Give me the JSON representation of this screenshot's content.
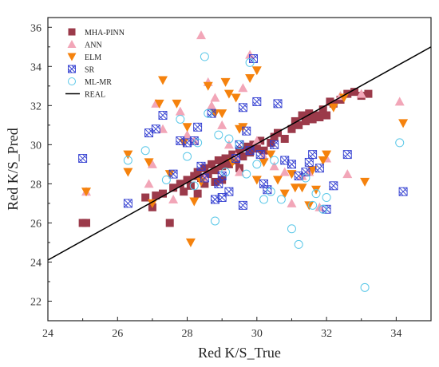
{
  "chart_data": {
    "type": "scatter",
    "xlabel": "Red K/S_True",
    "ylabel": "Red K/S_Pred",
    "xlim": [
      24,
      35
    ],
    "ylim": [
      21,
      36.5
    ],
    "x_ticks": [
      "24",
      "26",
      "28",
      "30",
      "32",
      "34"
    ],
    "y_ticks": [
      "22",
      "24",
      "26",
      "28",
      "30",
      "32",
      "34",
      "36"
    ],
    "grid": false,
    "legend_position": "top-left",
    "series": [
      {
        "name": "MHA-PINN",
        "marker": "square",
        "color": "#9b3a4a",
        "points": [
          [
            25.0,
            26.0
          ],
          [
            25.1,
            26.0
          ],
          [
            26.8,
            27.3
          ],
          [
            27.0,
            26.8
          ],
          [
            27.1,
            27.4
          ],
          [
            27.3,
            27.5
          ],
          [
            27.5,
            26.0
          ],
          [
            27.6,
            27.8
          ],
          [
            27.8,
            28.0
          ],
          [
            27.9,
            27.6
          ],
          [
            28.0,
            28.2
          ],
          [
            28.1,
            27.9
          ],
          [
            28.2,
            28.4
          ],
          [
            28.3,
            28.6
          ],
          [
            28.4,
            28.3
          ],
          [
            28.5,
            28.8
          ],
          [
            28.6,
            28.5
          ],
          [
            28.7,
            29.0
          ],
          [
            28.8,
            28.7
          ],
          [
            28.9,
            29.2
          ],
          [
            29.0,
            28.9
          ],
          [
            29.1,
            29.3
          ],
          [
            29.2,
            29.0
          ],
          [
            29.3,
            29.5
          ],
          [
            29.4,
            29.2
          ],
          [
            29.5,
            29.7
          ],
          [
            29.6,
            29.4
          ],
          [
            29.7,
            29.9
          ],
          [
            29.8,
            29.6
          ],
          [
            29.9,
            30.0
          ],
          [
            30.0,
            29.8
          ],
          [
            30.1,
            30.2
          ],
          [
            30.2,
            29.7
          ],
          [
            30.4,
            30.1
          ],
          [
            30.5,
            30.4
          ],
          [
            30.6,
            30.6
          ],
          [
            30.8,
            30.3
          ],
          [
            31.0,
            30.8
          ],
          [
            31.1,
            31.2
          ],
          [
            31.2,
            31.0
          ],
          [
            31.3,
            31.5
          ],
          [
            31.4,
            31.2
          ],
          [
            31.5,
            31.6
          ],
          [
            31.6,
            31.3
          ],
          [
            31.7,
            31.5
          ],
          [
            31.8,
            31.4
          ],
          [
            31.9,
            31.8
          ],
          [
            32.0,
            31.5
          ],
          [
            32.1,
            32.2
          ],
          [
            32.2,
            32.1
          ],
          [
            32.4,
            32.3
          ],
          [
            32.6,
            32.6
          ],
          [
            32.8,
            32.7
          ],
          [
            33.0,
            32.5
          ],
          [
            33.2,
            32.6
          ],
          [
            28.5,
            28.0
          ],
          [
            29.0,
            28.2
          ],
          [
            28.3,
            27.5
          ],
          [
            28.8,
            28.1
          ],
          [
            29.5,
            28.8
          ]
        ]
      },
      {
        "name": "ANN",
        "marker": "triangle-up",
        "color": "#f2a6b8",
        "points": [
          [
            25.1,
            27.6
          ],
          [
            26.9,
            28.0
          ],
          [
            27.0,
            29.0
          ],
          [
            27.1,
            32.1
          ],
          [
            27.3,
            30.8
          ],
          [
            27.6,
            27.2
          ],
          [
            27.8,
            31.7
          ],
          [
            28.0,
            30.5
          ],
          [
            28.2,
            30.2
          ],
          [
            28.4,
            35.6
          ],
          [
            28.5,
            28.3
          ],
          [
            28.6,
            33.2
          ],
          [
            28.7,
            32.0
          ],
          [
            28.8,
            32.4
          ],
          [
            29.0,
            31.0
          ],
          [
            29.2,
            30.0
          ],
          [
            29.4,
            29.4
          ],
          [
            29.5,
            28.6
          ],
          [
            29.6,
            32.9
          ],
          [
            29.8,
            34.6
          ],
          [
            30.0,
            30.2
          ],
          [
            30.2,
            29.4
          ],
          [
            30.5,
            28.9
          ],
          [
            30.8,
            28.6
          ],
          [
            31.0,
            27.0
          ],
          [
            31.3,
            28.4
          ],
          [
            31.5,
            28.6
          ],
          [
            31.8,
            26.8
          ],
          [
            32.0,
            29.3
          ],
          [
            32.4,
            32.5
          ],
          [
            32.6,
            28.5
          ],
          [
            33.0,
            32.6
          ],
          [
            34.1,
            32.2
          ]
        ]
      },
      {
        "name": "ELM",
        "marker": "triangle-down",
        "color": "#f5820d",
        "points": [
          [
            25.1,
            27.6
          ],
          [
            26.3,
            29.5
          ],
          [
            26.3,
            28.6
          ],
          [
            26.9,
            29.1
          ],
          [
            27.0,
            27.0
          ],
          [
            27.2,
            32.1
          ],
          [
            27.3,
            33.3
          ],
          [
            27.5,
            28.5
          ],
          [
            27.7,
            32.1
          ],
          [
            27.9,
            30.1
          ],
          [
            28.0,
            30.9
          ],
          [
            28.1,
            25.0
          ],
          [
            28.2,
            27.1
          ],
          [
            28.4,
            28.1
          ],
          [
            28.6,
            33.0
          ],
          [
            28.8,
            31.6
          ],
          [
            29.0,
            31.6
          ],
          [
            29.1,
            33.2
          ],
          [
            29.2,
            32.6
          ],
          [
            29.3,
            29.1
          ],
          [
            29.4,
            32.4
          ],
          [
            29.5,
            30.8
          ],
          [
            29.6,
            30.9
          ],
          [
            29.8,
            33.4
          ],
          [
            30.0,
            33.8
          ],
          [
            30.0,
            28.2
          ],
          [
            30.2,
            29.1
          ],
          [
            30.4,
            29.5
          ],
          [
            30.6,
            28.2
          ],
          [
            30.8,
            27.5
          ],
          [
            31.0,
            28.5
          ],
          [
            31.1,
            27.8
          ],
          [
            31.3,
            27.8
          ],
          [
            31.5,
            26.9
          ],
          [
            31.6,
            28.7
          ],
          [
            31.7,
            27.7
          ],
          [
            31.9,
            29.2
          ],
          [
            32.0,
            29.5
          ],
          [
            32.2,
            31.9
          ],
          [
            32.5,
            32.4
          ],
          [
            33.1,
            28.1
          ],
          [
            34.2,
            31.1
          ]
        ]
      },
      {
        "name": "SR",
        "marker": "x-square",
        "color": "#2f3bd0",
        "points": [
          [
            25.0,
            29.3
          ],
          [
            26.3,
            27.0
          ],
          [
            26.9,
            30.6
          ],
          [
            27.1,
            30.8
          ],
          [
            27.3,
            31.5
          ],
          [
            27.6,
            28.5
          ],
          [
            27.8,
            30.2
          ],
          [
            28.0,
            30.1
          ],
          [
            28.2,
            30.2
          ],
          [
            28.3,
            30.9
          ],
          [
            28.5,
            28.3
          ],
          [
            28.7,
            31.6
          ],
          [
            28.9,
            28.0
          ],
          [
            29.0,
            28.4
          ],
          [
            29.2,
            27.6
          ],
          [
            29.4,
            29.3
          ],
          [
            29.5,
            30.0
          ],
          [
            29.6,
            31.9
          ],
          [
            29.7,
            30.7
          ],
          [
            29.8,
            29.7
          ],
          [
            29.9,
            34.4
          ],
          [
            30.0,
            32.2
          ],
          [
            30.1,
            29.5
          ],
          [
            30.2,
            28.0
          ],
          [
            30.3,
            27.7
          ],
          [
            30.5,
            30.0
          ],
          [
            30.6,
            32.1
          ],
          [
            30.8,
            29.2
          ],
          [
            31.0,
            29.0
          ],
          [
            31.2,
            28.4
          ],
          [
            31.4,
            28.6
          ],
          [
            31.6,
            29.5
          ],
          [
            31.8,
            28.8
          ],
          [
            32.0,
            26.7
          ],
          [
            32.2,
            27.9
          ],
          [
            32.6,
            29.5
          ],
          [
            34.2,
            27.6
          ],
          [
            31.5,
            29.1
          ],
          [
            29.0,
            27.3
          ],
          [
            28.4,
            28.9
          ],
          [
            28.8,
            27.2
          ],
          [
            29.6,
            26.9
          ]
        ]
      },
      {
        "name": "ML-MR",
        "marker": "circle",
        "color": "#5bc8e8",
        "points": [
          [
            26.3,
            29.2
          ],
          [
            26.8,
            29.7
          ],
          [
            27.4,
            28.2
          ],
          [
            27.8,
            31.3
          ],
          [
            28.0,
            29.4
          ],
          [
            28.3,
            30.1
          ],
          [
            28.5,
            34.5
          ],
          [
            28.6,
            31.6
          ],
          [
            28.8,
            26.1
          ],
          [
            28.9,
            30.5
          ],
          [
            29.2,
            30.3
          ],
          [
            29.5,
            30.0
          ],
          [
            29.8,
            34.2
          ],
          [
            30.0,
            29.0
          ],
          [
            30.2,
            27.2
          ],
          [
            30.5,
            29.2
          ],
          [
            30.7,
            27.2
          ],
          [
            31.0,
            25.7
          ],
          [
            31.2,
            24.9
          ],
          [
            31.4,
            28.3
          ],
          [
            31.7,
            27.5
          ],
          [
            31.9,
            26.7
          ],
          [
            32.0,
            27.3
          ],
          [
            33.1,
            22.7
          ],
          [
            34.1,
            30.1
          ],
          [
            29.1,
            28.6
          ],
          [
            28.2,
            27.9
          ],
          [
            30.4,
            27.6
          ],
          [
            31.6,
            26.9
          ],
          [
            29.7,
            28.5
          ]
        ]
      }
    ],
    "lines": [
      {
        "name": "REAL",
        "color": "#000000",
        "x": [
          24,
          35
        ],
        "y": [
          24.1,
          35.0
        ]
      }
    ]
  }
}
